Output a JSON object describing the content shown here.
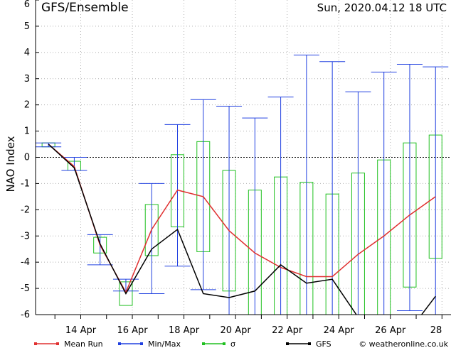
{
  "header": {
    "title": "GFS/Ensemble",
    "datetime": "Sun, 2020.04.12   18 UTC"
  },
  "legend": {
    "mean_label": "Mean Run",
    "minmax_label": "Min/Max",
    "sigma_label": "σ",
    "gfs_label": "GFS",
    "copyright": "© weatheronline.co.uk"
  },
  "colors": {
    "mean": "#e03030",
    "minmax": "#2040e0",
    "sigma": "#20c020",
    "gfs": "#000000",
    "grid": "#b0b0b0"
  },
  "chart_data": {
    "type": "line",
    "ylabel": "NAO Index",
    "xlabel": "",
    "ylim": [
      -6,
      6
    ],
    "yticks": [
      -6,
      -5,
      -4,
      -3,
      -2,
      -1,
      0,
      1,
      2,
      3,
      4,
      5,
      6
    ],
    "x_tick_labels": [
      {
        "day": 14,
        "label": "14 Apr"
      },
      {
        "day": 16,
        "label": "16 Apr"
      },
      {
        "day": 18,
        "label": "18 Apr"
      },
      {
        "day": 20,
        "label": "20 Apr"
      },
      {
        "day": 22,
        "label": "22 Apr"
      },
      {
        "day": 24,
        "label": "24 Apr"
      },
      {
        "day": 26,
        "label": "26 Apr"
      },
      {
        "day": 28,
        "label": "28"
      }
    ],
    "x": [
      12.75,
      13.75,
      14.75,
      15.75,
      16.75,
      17.75,
      18.75,
      19.75,
      20.75,
      21.75,
      22.75,
      23.75,
      24.75,
      25.75,
      26.75,
      27.75
    ],
    "series": [
      {
        "name": "Mean Run",
        "values": [
          0.5,
          -0.35,
          -3.35,
          -5.15,
          -2.75,
          -1.25,
          -1.5,
          -2.8,
          -3.65,
          -4.2,
          -4.55,
          -4.55,
          -3.7,
          -3.0,
          -2.2,
          -1.5
        ]
      },
      {
        "name": "GFS",
        "values": [
          0.5,
          -0.4,
          -3.3,
          -5.2,
          -3.5,
          -2.75,
          -5.2,
          -5.35,
          -5.1,
          -4.1,
          -4.8,
          -4.65,
          -6.1,
          -6.2,
          -6.6,
          -5.3
        ]
      },
      {
        "name": "Min/Max",
        "min": [
          0.4,
          -0.5,
          -4.1,
          -5.1,
          -5.2,
          -4.15,
          -5.05,
          -6.3,
          -6.3,
          -6.3,
          -6.3,
          -6.3,
          -6.3,
          -6.3,
          -5.85,
          -6.3
        ],
        "max": [
          0.55,
          0.0,
          -2.95,
          -4.65,
          -1.0,
          1.25,
          2.2,
          1.95,
          1.5,
          2.3,
          3.9,
          3.65,
          2.5,
          3.25,
          3.55,
          3.45
        ]
      },
      {
        "name": "σ",
        "low": [
          0.4,
          -0.5,
          -3.65,
          -5.65,
          -3.75,
          -2.65,
          -3.6,
          -5.1,
          -6.1,
          -6.1,
          -6.1,
          -6.1,
          -6.1,
          -6.1,
          -4.95,
          -3.85
        ],
        "high": [
          0.55,
          -0.15,
          -3.05,
          -4.75,
          -1.8,
          0.1,
          0.6,
          -0.5,
          -1.25,
          -0.75,
          -0.95,
          -1.4,
          -0.6,
          -0.1,
          0.55,
          0.85
        ]
      }
    ]
  }
}
